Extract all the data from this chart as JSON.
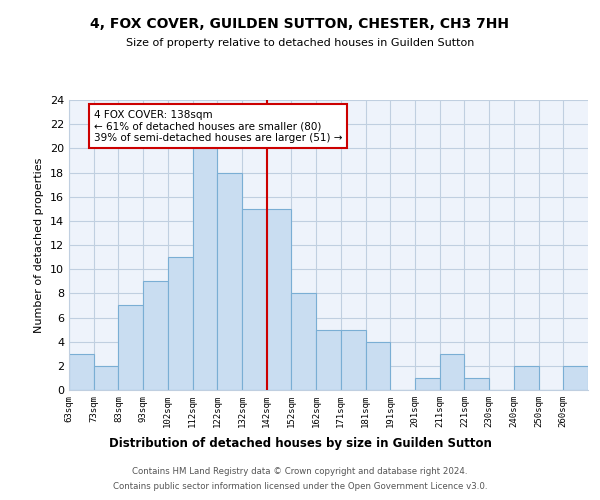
{
  "title": "4, FOX COVER, GUILDEN SUTTON, CHESTER, CH3 7HH",
  "subtitle": "Size of property relative to detached houses in Guilden Sutton",
  "xlabel": "Distribution of detached houses by size in Guilden Sutton",
  "ylabel": "Number of detached properties",
  "bin_labels": [
    "63sqm",
    "73sqm",
    "83sqm",
    "93sqm",
    "102sqm",
    "112sqm",
    "122sqm",
    "132sqm",
    "142sqm",
    "152sqm",
    "162sqm",
    "171sqm",
    "181sqm",
    "191sqm",
    "201sqm",
    "211sqm",
    "221sqm",
    "230sqm",
    "240sqm",
    "250sqm",
    "260sqm"
  ],
  "bar_values": [
    3,
    2,
    7,
    9,
    11,
    20,
    18,
    15,
    15,
    8,
    5,
    5,
    4,
    0,
    1,
    3,
    1,
    0,
    2,
    0,
    2
  ],
  "bar_color": "#c9ddf1",
  "bar_edge_color": "#7aaed4",
  "vline_x_index": 8,
  "vline_color": "#cc0000",
  "annotation_title": "4 FOX COVER: 138sqm",
  "annotation_line1": "← 61% of detached houses are smaller (80)",
  "annotation_line2": "39% of semi-detached houses are larger (51) →",
  "annotation_box_color": "#ffffff",
  "annotation_box_edge": "#cc0000",
  "ylim": [
    0,
    24
  ],
  "yticks": [
    0,
    2,
    4,
    6,
    8,
    10,
    12,
    14,
    16,
    18,
    20,
    22,
    24
  ],
  "footer1": "Contains HM Land Registry data © Crown copyright and database right 2024.",
  "footer2": "Contains public sector information licensed under the Open Government Licence v3.0.",
  "bg_color": "#ffffff",
  "plot_bg_color": "#eef3fb",
  "grid_color": "#c0cfe0"
}
